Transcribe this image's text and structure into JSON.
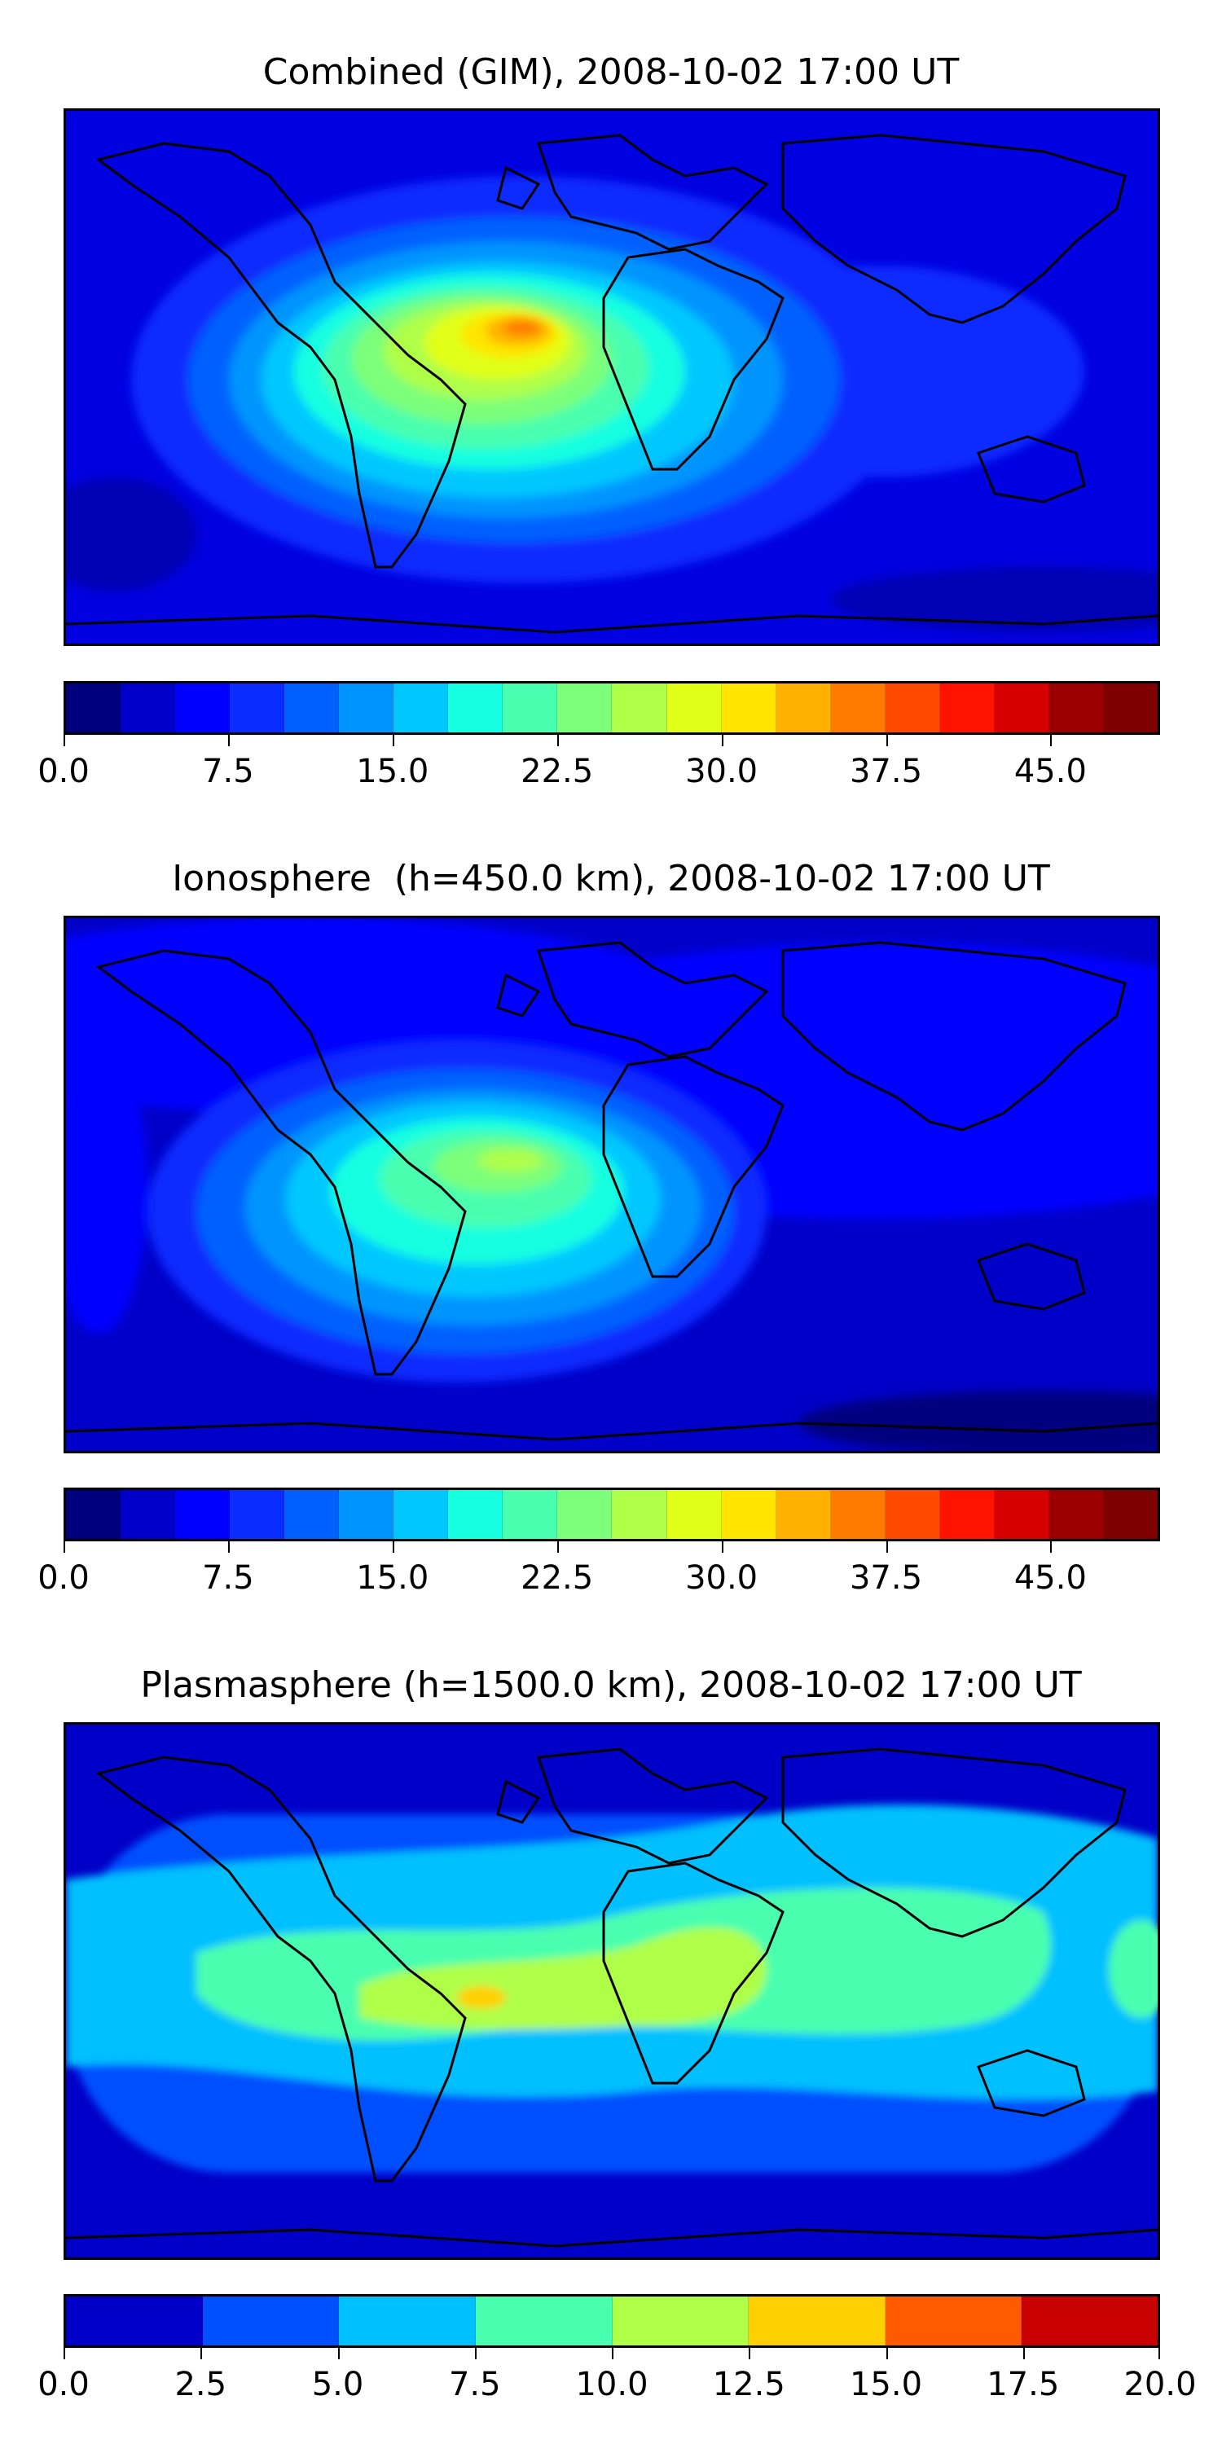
{
  "panels": [
    {
      "title": "Combined (GIM), 2008-10-02 17:00 UT",
      "colorbar": {
        "min": 0,
        "max": 50,
        "colors": [
          "#00007f",
          "#0000c8",
          "#0000ff",
          "#0a2cff",
          "#0060ff",
          "#0094ff",
          "#00c8ff",
          "#16ffe1",
          "#48ffaf",
          "#7cff7a",
          "#afff48",
          "#e1ff16",
          "#ffe500",
          "#ffb000",
          "#ff7b00",
          "#ff4800",
          "#ff1300",
          "#d70000",
          "#9d0000",
          "#7f0000"
        ],
        "visible_segments": 20,
        "tick_labels": [
          "0.0",
          "7.5",
          "15.0",
          "22.5",
          "30.0",
          "37.5",
          "45.0"
        ],
        "tick_values": [
          0,
          7.5,
          15,
          22.5,
          30,
          37.5,
          45
        ]
      }
    },
    {
      "title": "Ionosphere  (h=450.0 km), 2008-10-02 17:00 UT",
      "colorbar": {
        "min": 0,
        "max": 50,
        "colors": [
          "#00007f",
          "#0000c8",
          "#0000ff",
          "#0a2cff",
          "#0060ff",
          "#0094ff",
          "#00c8ff",
          "#16ffe1",
          "#48ffaf",
          "#7cff7a",
          "#afff48",
          "#e1ff16",
          "#ffe500",
          "#ffb000",
          "#ff7b00",
          "#ff4800",
          "#ff1300",
          "#d70000",
          "#9d0000",
          "#7f0000"
        ],
        "visible_segments": 20,
        "tick_labels": [
          "0.0",
          "7.5",
          "15.0",
          "22.5",
          "30.0",
          "37.5",
          "45.0"
        ],
        "tick_values": [
          0,
          7.5,
          15,
          22.5,
          30,
          37.5,
          45
        ]
      }
    },
    {
      "title": "Plasmasphere (h=1500.0 km), 2008-10-02 17:00 UT",
      "colorbar": {
        "min": 0,
        "max": 20,
        "colors": [
          "#0000c8",
          "#0050ff",
          "#00c0ff",
          "#48ffaf",
          "#afff48",
          "#ffd000",
          "#ff5a00",
          "#c80000"
        ],
        "visible_segments": 8,
        "tick_labels": [
          "0.0",
          "2.5",
          "5.0",
          "7.5",
          "10.0",
          "12.5",
          "15.0",
          "17.5",
          "20.0"
        ],
        "tick_values": [
          0,
          2.5,
          5,
          7.5,
          10,
          12.5,
          15,
          17.5,
          20
        ]
      }
    }
  ]
}
